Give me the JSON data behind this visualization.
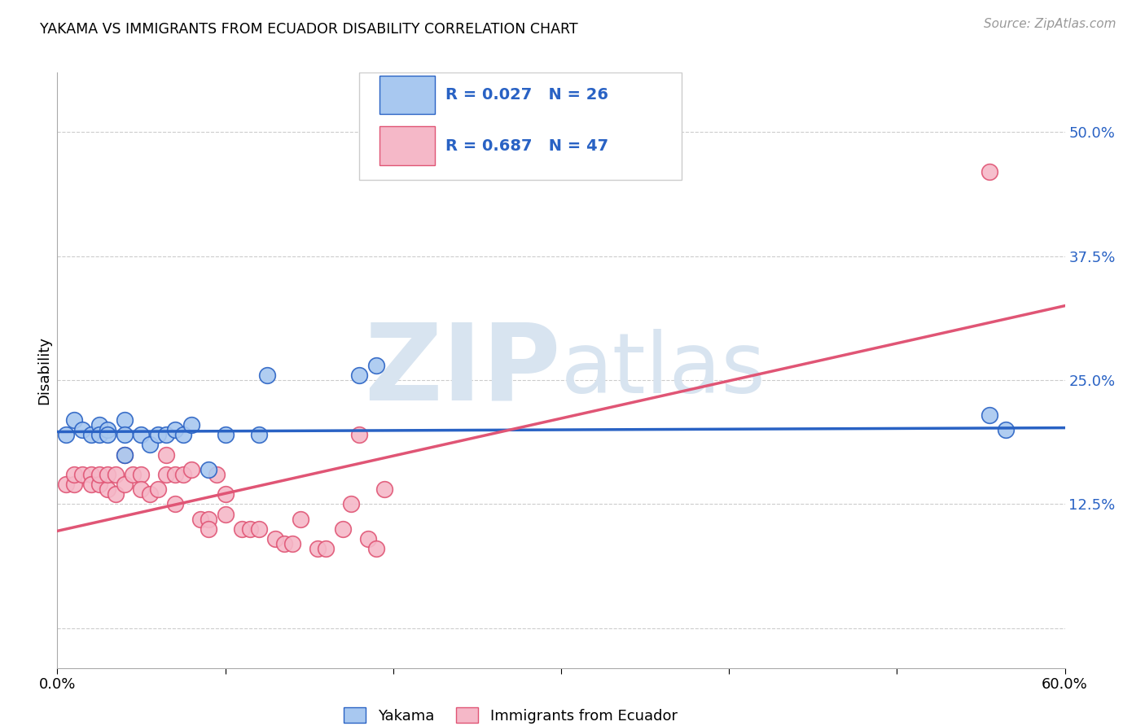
{
  "title": "YAKAMA VS IMMIGRANTS FROM ECUADOR DISABILITY CORRELATION CHART",
  "source": "Source: ZipAtlas.com",
  "ylabel": "Disability",
  "xlim": [
    0.0,
    0.6
  ],
  "ylim": [
    -0.04,
    0.56
  ],
  "yticks": [
    0.0,
    0.125,
    0.25,
    0.375,
    0.5
  ],
  "ytick_labels": [
    "",
    "12.5%",
    "25.0%",
    "37.5%",
    "50.0%"
  ],
  "xticks": [
    0.0,
    0.1,
    0.2,
    0.3,
    0.4,
    0.5,
    0.6
  ],
  "xtick_labels": [
    "0.0%",
    "",
    "",
    "",
    "",
    "",
    "60.0%"
  ],
  "blue_R": 0.027,
  "blue_N": 26,
  "pink_R": 0.687,
  "pink_N": 47,
  "blue_color": "#a8c8f0",
  "pink_color": "#f5b8c8",
  "blue_line_color": "#2962c4",
  "pink_line_color": "#e05575",
  "legend_label_1": "Yakama",
  "legend_label_2": "Immigrants from Ecuador",
  "watermark_zip": "ZIP",
  "watermark_atlas": "atlas",
  "watermark_color": "#d8e4f0",
  "blue_scatter_x": [
    0.005,
    0.01,
    0.015,
    0.02,
    0.025,
    0.025,
    0.03,
    0.03,
    0.04,
    0.04,
    0.04,
    0.05,
    0.055,
    0.06,
    0.065,
    0.07,
    0.075,
    0.08,
    0.09,
    0.1,
    0.12,
    0.125,
    0.18,
    0.19,
    0.555,
    0.565
  ],
  "blue_scatter_y": [
    0.195,
    0.21,
    0.2,
    0.195,
    0.205,
    0.195,
    0.2,
    0.195,
    0.21,
    0.195,
    0.175,
    0.195,
    0.185,
    0.195,
    0.195,
    0.2,
    0.195,
    0.205,
    0.16,
    0.195,
    0.195,
    0.255,
    0.255,
    0.265,
    0.215,
    0.2
  ],
  "pink_scatter_x": [
    0.005,
    0.01,
    0.01,
    0.015,
    0.02,
    0.02,
    0.025,
    0.025,
    0.03,
    0.03,
    0.035,
    0.035,
    0.04,
    0.04,
    0.045,
    0.05,
    0.05,
    0.055,
    0.06,
    0.065,
    0.065,
    0.07,
    0.07,
    0.075,
    0.08,
    0.085,
    0.09,
    0.09,
    0.095,
    0.1,
    0.1,
    0.11,
    0.115,
    0.12,
    0.13,
    0.135,
    0.14,
    0.145,
    0.155,
    0.16,
    0.17,
    0.175,
    0.18,
    0.185,
    0.19,
    0.195,
    0.555
  ],
  "pink_scatter_y": [
    0.145,
    0.145,
    0.155,
    0.155,
    0.155,
    0.145,
    0.145,
    0.155,
    0.14,
    0.155,
    0.135,
    0.155,
    0.175,
    0.145,
    0.155,
    0.155,
    0.14,
    0.135,
    0.14,
    0.175,
    0.155,
    0.155,
    0.125,
    0.155,
    0.16,
    0.11,
    0.11,
    0.1,
    0.155,
    0.115,
    0.135,
    0.1,
    0.1,
    0.1,
    0.09,
    0.085,
    0.085,
    0.11,
    0.08,
    0.08,
    0.1,
    0.125,
    0.195,
    0.09,
    0.08,
    0.14,
    0.46
  ],
  "blue_trend_x": [
    0.0,
    0.6
  ],
  "blue_trend_y": [
    0.198,
    0.202
  ],
  "pink_trend_x": [
    0.0,
    0.6
  ],
  "pink_trend_y": [
    0.098,
    0.325
  ]
}
